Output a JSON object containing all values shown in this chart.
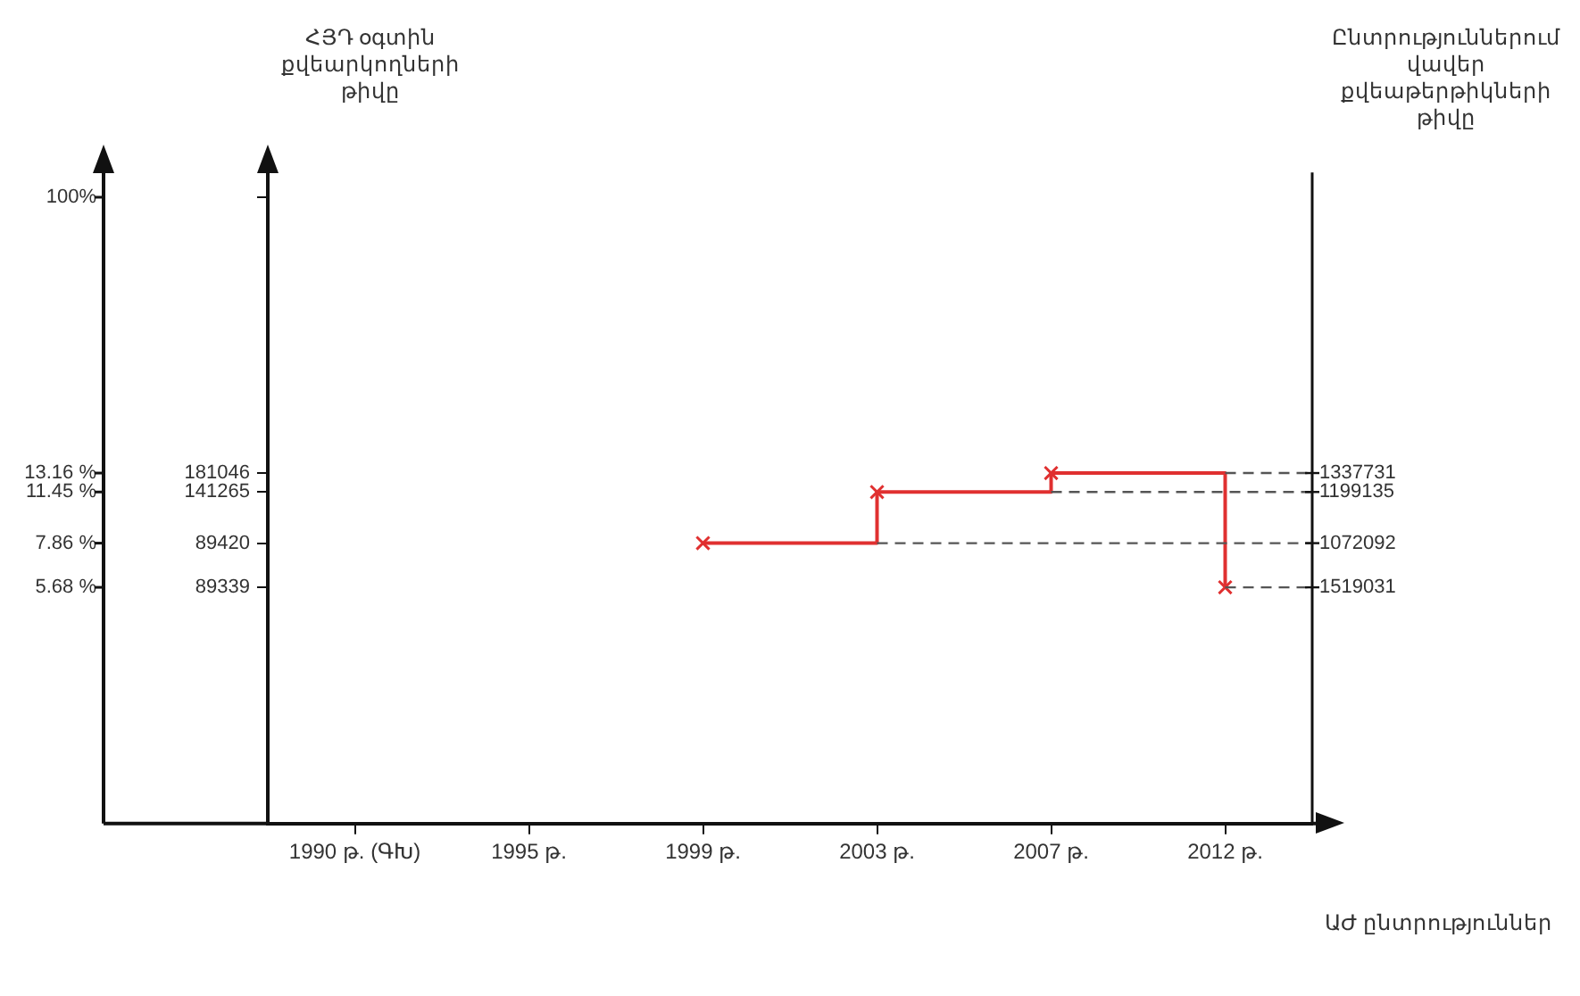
{
  "chart_data": {
    "type": "step",
    "xlabel": "ԱԺ ընտրություններ",
    "ylabel": "ՀՅԴ օգտին քվեարկողների թիվը",
    "y2label": "Ընտրություններում վավեր քվեաթերթիկների թիվը",
    "categories": [
      "1990 թ. (ԳԽ)",
      "1995 թ.",
      "1999 թ.",
      "2003 թ.",
      "2007 թ.",
      "2012 թ."
    ],
    "series": [
      {
        "color": "#e03030",
        "values": [
          null,
          null,
          7.86,
          11.45,
          13.16,
          5.68
        ]
      }
    ],
    "marker": "cross",
    "log": "y",
    "ylim": [
      1,
      120
    ],
    "yticks": [
      {
        "value": 5.68,
        "label": "5.68 %"
      },
      {
        "value": 7.86,
        "label": "7.86 %"
      },
      {
        "value": 11.45,
        "label": "11.45 %"
      },
      {
        "value": 13.16,
        "label": "13.16 %"
      },
      {
        "value": 100,
        "label": "100%"
      }
    ],
    "ref_lines": [
      {
        "axis": "y",
        "value": 13.16,
        "color": "#555555",
        "line_style": "dashed"
      },
      {
        "axis": "y",
        "value": 11.45,
        "color": "#555555",
        "line_style": "dashed"
      },
      {
        "axis": "y",
        "value": 7.86,
        "color": "#555555",
        "line_style": "dashed"
      },
      {
        "axis": "y",
        "value": 5.68,
        "color": "#555555",
        "line_style": "dashed"
      }
    ],
    "annotations": [
      "89339",
      "89420",
      "141265",
      "181046",
      "1519031",
      "1072092",
      "1199135",
      "1337731"
    ]
  }
}
